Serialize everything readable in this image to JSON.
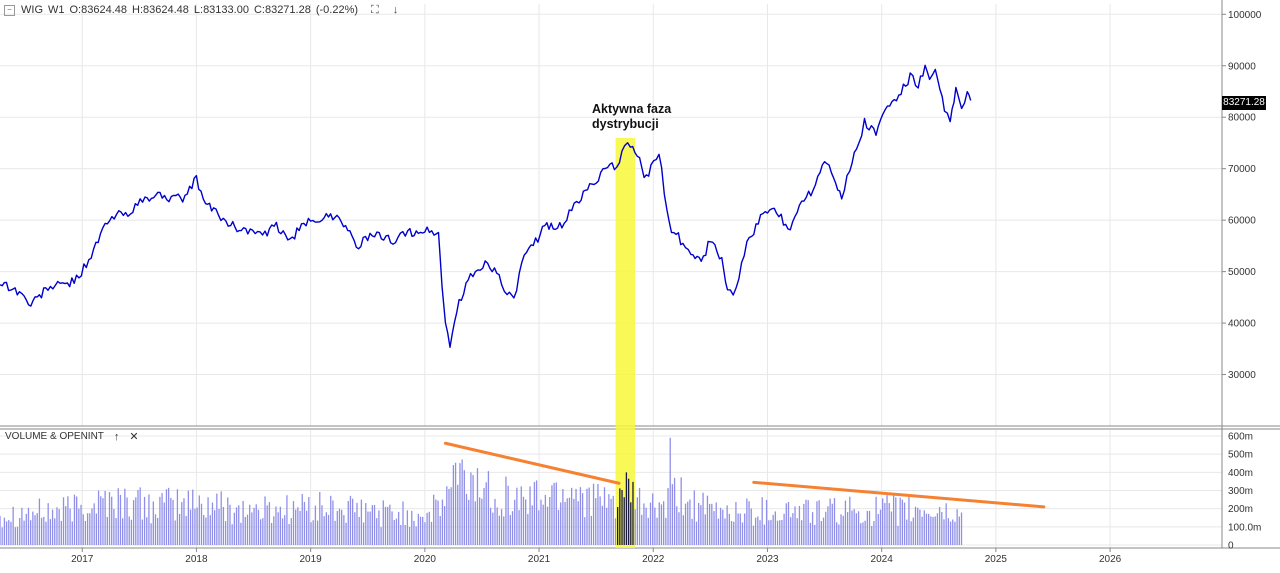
{
  "header": {
    "symbol": "WIG",
    "timeframe": "W1",
    "open": "O:83624.48",
    "high": "H:83624.48",
    "low": "L:83133.00",
    "close": "C:83271.28",
    "change": "(-0.22%)"
  },
  "volume_panel": {
    "title": "VOLUME & OPENINT"
  },
  "annotation": {
    "line1": "Aktywna faza",
    "line2": "dystrybucji"
  },
  "last_price_label": "83271.28",
  "colors": {
    "price": "#0000cc",
    "volume": "#8f8fea",
    "highlight": "#f7f73a",
    "trend": "#f58233",
    "grid": "#e8e8e8"
  },
  "chart_data": [
    {
      "type": "line",
      "title": "WIG",
      "ylim": [
        20000,
        102000
      ],
      "y_ticks": [
        30000,
        40000,
        50000,
        60000,
        70000,
        80000,
        90000,
        100000
      ],
      "y_tick_labels": [
        "30000",
        "40000",
        "50000",
        "60000",
        "70000",
        "80000",
        "90000",
        "100000"
      ],
      "x_tick_labels": [
        "2017",
        "2018",
        "2019",
        "2020",
        "2021",
        "2022",
        "2023",
        "2024",
        "2025",
        "2026"
      ],
      "x_ticks": [
        2017.0,
        2018.0,
        2019.0,
        2020.0,
        2021.0,
        2022.0,
        2023.0,
        2024.0,
        2025.0,
        2026.0
      ],
      "xlim": [
        2016.28,
        2026.98
      ],
      "series": [
        {
          "x": [
            2016.28,
            2016.45,
            2016.55,
            2016.7,
            2016.85,
            2016.95,
            2017.1,
            2017.2,
            2017.3,
            2017.4,
            2017.55,
            2017.7,
            2017.8,
            2017.9,
            2018.0,
            2018.08,
            2018.15,
            2018.3,
            2018.45,
            2018.6,
            2018.7,
            2018.8,
            2018.9,
            2019.0,
            2019.1,
            2019.25,
            2019.4,
            2019.5,
            2019.6,
            2019.7,
            2019.85,
            2020.0,
            2020.12,
            2020.15,
            2020.18,
            2020.22,
            2020.3,
            2020.4,
            2020.55,
            2020.65,
            2020.72,
            2020.78,
            2020.85,
            2020.95,
            2021.05,
            2021.2,
            2021.35,
            2021.5,
            2021.6,
            2021.68,
            2021.75,
            2021.8,
            2021.86,
            2021.92,
            2021.98,
            2022.05,
            2022.12,
            2022.16,
            2022.2,
            2022.26,
            2022.33,
            2022.42,
            2022.5,
            2022.6,
            2022.65,
            2022.7,
            2022.75,
            2022.82,
            2022.9,
            2023.0,
            2023.1,
            2023.2,
            2023.3,
            2023.4,
            2023.5,
            2023.58,
            2023.65,
            2023.72,
            2023.8,
            2023.85,
            2023.95,
            2024.05,
            2024.15,
            2024.25,
            2024.32,
            2024.38,
            2024.42,
            2024.47,
            2024.55,
            2024.6,
            2024.65,
            2024.7,
            2024.75,
            2024.78
          ],
          "y": [
            48000,
            46000,
            43500,
            47000,
            47500,
            48500,
            54000,
            59000,
            61000,
            61500,
            64000,
            65000,
            64000,
            64500,
            68000,
            63000,
            62000,
            59000,
            58000,
            57000,
            59000,
            56000,
            58000,
            60000,
            60500,
            61000,
            55000,
            56500,
            57000,
            56000,
            57500,
            58000,
            57500,
            47000,
            40000,
            36000,
            44000,
            49000,
            52000,
            49000,
            46000,
            44000,
            52000,
            55000,
            59000,
            59000,
            64000,
            68000,
            70000,
            70500,
            74000,
            75000,
            73000,
            68000,
            70000,
            73000,
            62000,
            57000,
            58000,
            55000,
            54000,
            52000,
            56000,
            52000,
            47000,
            45500,
            49000,
            55000,
            59000,
            62000,
            61000,
            58000,
            64000,
            66000,
            72000,
            69000,
            64000,
            70000,
            75000,
            79000,
            77000,
            82000,
            84000,
            88000,
            86000,
            89500,
            87000,
            88500,
            82000,
            79000,
            85000,
            82000,
            84500,
            83271.28
          ],
          "name": ""
        }
      ]
    },
    {
      "type": "bar",
      "title": "VOLUME & OPENINT",
      "ylim": [
        0,
        600
      ],
      "y_ticks": [
        0,
        100,
        200,
        300,
        400,
        500,
        600
      ],
      "y_tick_labels": [
        "0",
        "100.0m",
        "200m",
        "300m",
        "400m",
        "500m",
        "600m"
      ],
      "x_tick_labels": [
        "2017",
        "2018",
        "2019",
        "2020",
        "2021",
        "2022",
        "2023",
        "2024",
        "2025",
        "2026"
      ],
      "value_unit": "m",
      "bar_start_year": 2016.28,
      "bar_step_years": 0.019178,
      "bar_count": 440,
      "volume_anchors_x": [
        2016.28,
        2016.8,
        2017.2,
        2017.6,
        2018.0,
        2018.5,
        2019.0,
        2019.5,
        2020.0,
        2020.15,
        2020.25,
        2020.4,
        2020.8,
        2021.0,
        2021.3,
        2021.6,
        2021.75,
        2021.9,
        2022.1,
        2022.2,
        2022.5,
        2023.0,
        2023.5,
        2024.0,
        2024.5,
        2024.78
      ],
      "volume_anchors_y": [
        210,
        220,
        300,
        260,
        280,
        230,
        250,
        220,
        200,
        260,
        450,
        420,
        300,
        320,
        380,
        260,
        350,
        260,
        240,
        330,
        220,
        230,
        220,
        230,
        220,
        170
      ],
      "highlight_x_range": [
        2021.67,
        2021.84
      ],
      "trendlines": [
        {
          "x": [
            2020.18,
            2021.7
          ],
          "y": [
            560,
            340
          ]
        },
        {
          "x": [
            2022.88,
            2025.42
          ],
          "y": [
            345,
            210
          ]
        }
      ]
    }
  ]
}
